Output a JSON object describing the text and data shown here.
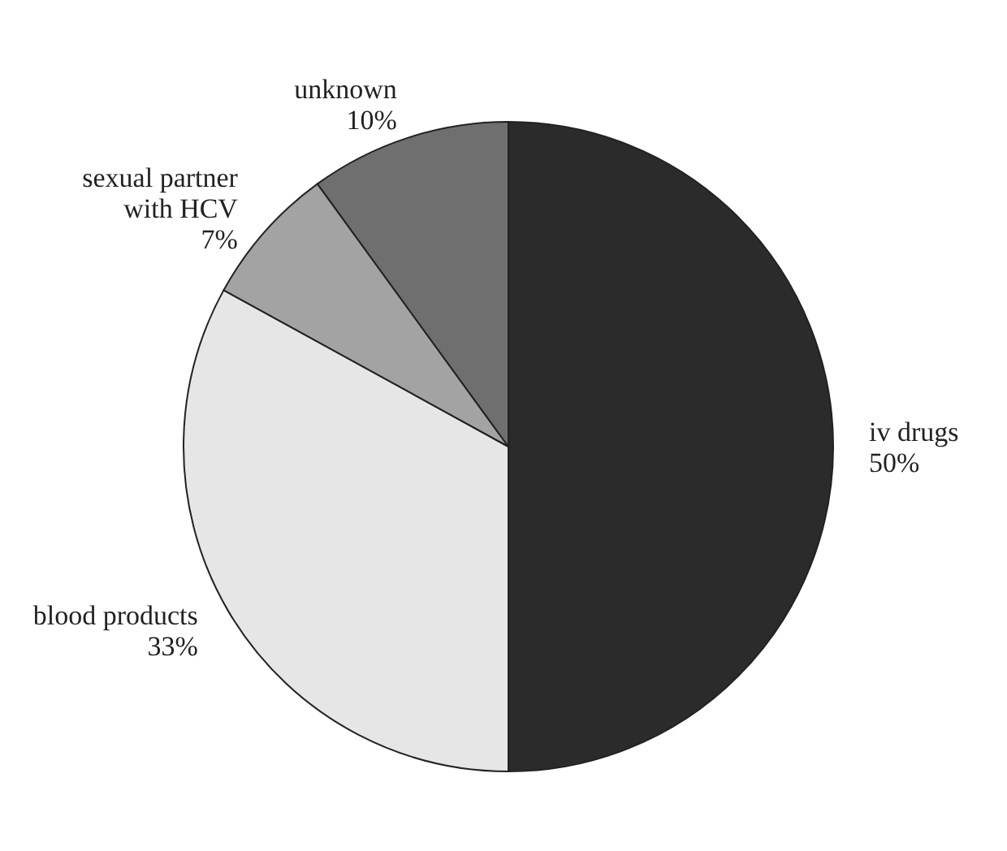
{
  "chart_data": {
    "type": "pie",
    "categories": [
      "iv drugs",
      "blood products",
      "sexual partner with HCV",
      "unknown"
    ],
    "values": [
      50,
      33,
      7,
      10
    ],
    "colors": [
      "#2b2b2b",
      "#e6e6e6",
      "#a3a3a3",
      "#6f6f6f"
    ],
    "value_labels": [
      "50%",
      "33%",
      "7%",
      "10%"
    ]
  }
}
